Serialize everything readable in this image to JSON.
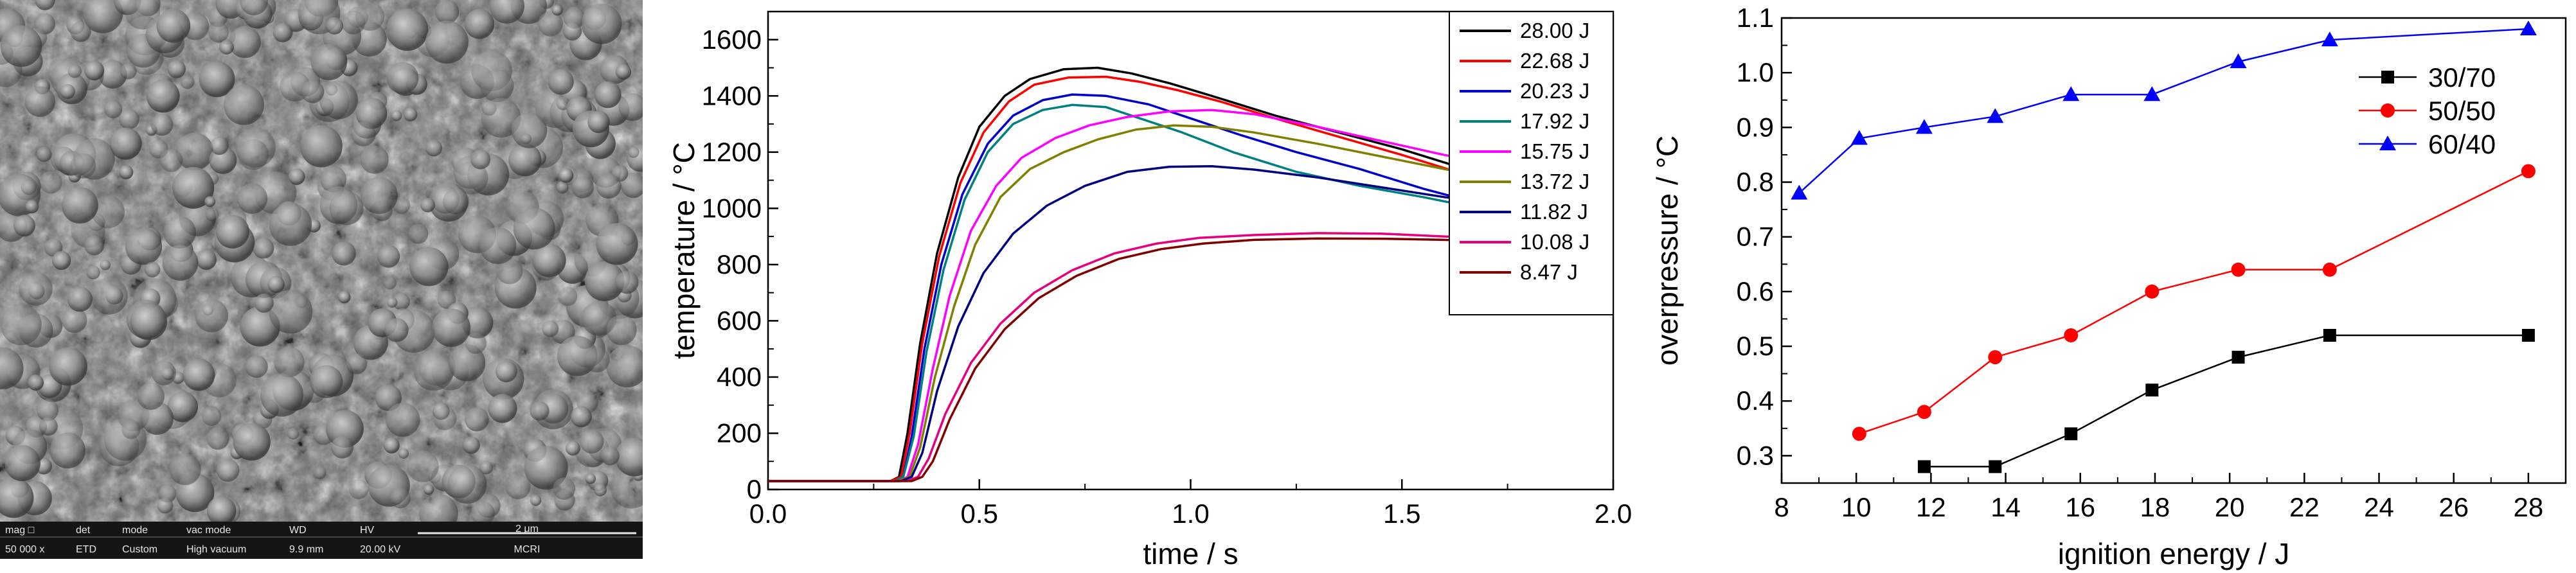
{
  "sem_image": {
    "info_bar": {
      "headers": [
        "mag □",
        "det",
        "mode",
        "vac mode",
        "WD",
        "HV"
      ],
      "values": [
        "50 000 x",
        "ETD",
        "Custom",
        "High vacuum",
        "9.9 mm",
        "20.00 kV"
      ],
      "scale": "2 μm",
      "lab": "MCRI"
    }
  },
  "chart_data": [
    {
      "type": "line",
      "xlabel": "time / s",
      "ylabel": "temperature / °C",
      "xlim": [
        0.0,
        2.0
      ],
      "ylim": [
        0,
        1700
      ],
      "xticks": [
        "0.0",
        "0.5",
        "1.0",
        "1.5",
        "2.0"
      ],
      "yticks": [
        "0",
        "200",
        "400",
        "600",
        "800",
        "1000",
        "1200",
        "1400",
        "1600"
      ],
      "grid": false,
      "legend_position": "top-right",
      "series": [
        {
          "name": "28.00 J",
          "color": "#000000",
          "points": [
            [
              0,
              30
            ],
            [
              0.29,
              30
            ],
            [
              0.31,
              45
            ],
            [
              0.33,
              200
            ],
            [
              0.36,
              520
            ],
            [
              0.4,
              840
            ],
            [
              0.45,
              1110
            ],
            [
              0.5,
              1290
            ],
            [
              0.56,
              1400
            ],
            [
              0.62,
              1460
            ],
            [
              0.7,
              1495
            ],
            [
              0.78,
              1500
            ],
            [
              0.86,
              1480
            ],
            [
              0.95,
              1445
            ],
            [
              1.05,
              1400
            ],
            [
              1.2,
              1330
            ],
            [
              1.35,
              1270
            ],
            [
              1.5,
              1210
            ],
            [
              1.65,
              1140
            ],
            [
              1.75,
              1090
            ]
          ]
        },
        {
          "name": "22.68 J",
          "color": "#ff0000",
          "points": [
            [
              0,
              30
            ],
            [
              0.29,
              30
            ],
            [
              0.315,
              45
            ],
            [
              0.335,
              200
            ],
            [
              0.365,
              520
            ],
            [
              0.405,
              830
            ],
            [
              0.455,
              1090
            ],
            [
              0.51,
              1270
            ],
            [
              0.57,
              1380
            ],
            [
              0.63,
              1440
            ],
            [
              0.71,
              1465
            ],
            [
              0.8,
              1468
            ],
            [
              0.88,
              1450
            ],
            [
              0.97,
              1420
            ],
            [
              1.07,
              1380
            ],
            [
              1.2,
              1320
            ],
            [
              1.35,
              1255
            ],
            [
              1.5,
              1190
            ],
            [
              1.65,
              1120
            ],
            [
              1.75,
              1075
            ]
          ]
        },
        {
          "name": "20.23 J",
          "color": "#0000cc",
          "points": [
            [
              0,
              30
            ],
            [
              0.3,
              30
            ],
            [
              0.32,
              45
            ],
            [
              0.34,
              190
            ],
            [
              0.37,
              500
            ],
            [
              0.41,
              800
            ],
            [
              0.46,
              1050
            ],
            [
              0.52,
              1230
            ],
            [
              0.58,
              1330
            ],
            [
              0.65,
              1385
            ],
            [
              0.72,
              1405
            ],
            [
              0.8,
              1400
            ],
            [
              0.9,
              1370
            ],
            [
              1.0,
              1320
            ],
            [
              1.12,
              1260
            ],
            [
              1.25,
              1200
            ],
            [
              1.4,
              1140
            ],
            [
              1.55,
              1070
            ],
            [
              1.65,
              1030
            ],
            [
              1.75,
              990
            ]
          ]
        },
        {
          "name": "17.92 J",
          "color": "#008080",
          "points": [
            [
              0,
              30
            ],
            [
              0.3,
              30
            ],
            [
              0.32,
              45
            ],
            [
              0.345,
              190
            ],
            [
              0.375,
              490
            ],
            [
              0.415,
              780
            ],
            [
              0.465,
              1030
            ],
            [
              0.52,
              1200
            ],
            [
              0.58,
              1300
            ],
            [
              0.65,
              1350
            ],
            [
              0.72,
              1368
            ],
            [
              0.8,
              1360
            ],
            [
              0.88,
              1320
            ],
            [
              0.98,
              1270
            ],
            [
              1.1,
              1200
            ],
            [
              1.25,
              1130
            ],
            [
              1.4,
              1080
            ],
            [
              1.55,
              1040
            ],
            [
              1.65,
              1010
            ],
            [
              1.75,
              980
            ]
          ]
        },
        {
          "name": "15.75 J",
          "color": "#ff00ff",
          "points": [
            [
              0,
              30
            ],
            [
              0.31,
              30
            ],
            [
              0.33,
              45
            ],
            [
              0.355,
              160
            ],
            [
              0.39,
              430
            ],
            [
              0.43,
              690
            ],
            [
              0.48,
              920
            ],
            [
              0.54,
              1080
            ],
            [
              0.6,
              1180
            ],
            [
              0.68,
              1250
            ],
            [
              0.76,
              1295
            ],
            [
              0.85,
              1325
            ],
            [
              0.95,
              1345
            ],
            [
              1.05,
              1350
            ],
            [
              1.15,
              1335
            ],
            [
              1.3,
              1290
            ],
            [
              1.45,
              1240
            ],
            [
              1.6,
              1190
            ],
            [
              1.75,
              1150
            ]
          ]
        },
        {
          "name": "13.72 J",
          "color": "#808000",
          "points": [
            [
              0,
              30
            ],
            [
              0.31,
              30
            ],
            [
              0.335,
              45
            ],
            [
              0.36,
              150
            ],
            [
              0.395,
              400
            ],
            [
              0.44,
              650
            ],
            [
              0.49,
              870
            ],
            [
              0.55,
              1040
            ],
            [
              0.62,
              1140
            ],
            [
              0.7,
              1200
            ],
            [
              0.78,
              1245
            ],
            [
              0.87,
              1280
            ],
            [
              0.96,
              1295
            ],
            [
              1.05,
              1290
            ],
            [
              1.15,
              1270
            ],
            [
              1.3,
              1230
            ],
            [
              1.45,
              1185
            ],
            [
              1.6,
              1140
            ],
            [
              1.75,
              1100
            ]
          ]
        },
        {
          "name": "11.82 J",
          "color": "#000080",
          "points": [
            [
              0,
              30
            ],
            [
              0.315,
              30
            ],
            [
              0.34,
              45
            ],
            [
              0.365,
              130
            ],
            [
              0.4,
              350
            ],
            [
              0.45,
              580
            ],
            [
              0.51,
              770
            ],
            [
              0.58,
              910
            ],
            [
              0.66,
              1010
            ],
            [
              0.75,
              1080
            ],
            [
              0.85,
              1130
            ],
            [
              0.95,
              1148
            ],
            [
              1.05,
              1150
            ],
            [
              1.15,
              1138
            ],
            [
              1.3,
              1110
            ],
            [
              1.45,
              1075
            ],
            [
              1.6,
              1040
            ],
            [
              1.75,
              1010
            ]
          ]
        },
        {
          "name": "10.08 J",
          "color": "#e6007e",
          "points": [
            [
              0,
              30
            ],
            [
              0.33,
              30
            ],
            [
              0.355,
              45
            ],
            [
              0.38,
              110
            ],
            [
              0.42,
              270
            ],
            [
              0.48,
              450
            ],
            [
              0.55,
              590
            ],
            [
              0.63,
              700
            ],
            [
              0.72,
              780
            ],
            [
              0.82,
              840
            ],
            [
              0.92,
              875
            ],
            [
              1.02,
              895
            ],
            [
              1.15,
              905
            ],
            [
              1.3,
              912
            ],
            [
              1.45,
              910
            ],
            [
              1.6,
              900
            ],
            [
              1.75,
              895
            ]
          ]
        },
        {
          "name": "8.47 J",
          "color": "#800000",
          "points": [
            [
              0,
              30
            ],
            [
              0.34,
              30
            ],
            [
              0.365,
              45
            ],
            [
              0.39,
              100
            ],
            [
              0.43,
              250
            ],
            [
              0.49,
              430
            ],
            [
              0.56,
              570
            ],
            [
              0.64,
              680
            ],
            [
              0.73,
              760
            ],
            [
              0.83,
              820
            ],
            [
              0.93,
              855
            ],
            [
              1.03,
              875
            ],
            [
              1.15,
              888
            ],
            [
              1.3,
              893
            ],
            [
              1.45,
              892
            ],
            [
              1.6,
              888
            ],
            [
              1.75,
              880
            ]
          ]
        }
      ]
    },
    {
      "type": "line",
      "xlabel": "ignition energy / J",
      "ylabel": "overpressure / °C",
      "xlim": [
        8,
        29
      ],
      "ylim": [
        0.25,
        1.1
      ],
      "xticks": [
        "8",
        "10",
        "12",
        "14",
        "16",
        "18",
        "20",
        "22",
        "24",
        "26",
        "28"
      ],
      "yticks": [
        "0.3",
        "0.4",
        "0.5",
        "0.6",
        "0.7",
        "0.8",
        "0.9",
        "1.0",
        "1.1"
      ],
      "grid": false,
      "legend_position": "top-right",
      "series": [
        {
          "name": "30/70",
          "color": "#000000",
          "marker": "square",
          "x": [
            11.82,
            13.72,
            15.75,
            17.92,
            20.23,
            22.68,
            28.0
          ],
          "y": [
            0.28,
            0.28,
            0.34,
            0.42,
            0.48,
            0.52,
            0.52
          ]
        },
        {
          "name": "50/50",
          "color": "#ff0000",
          "marker": "circle",
          "x": [
            10.08,
            11.82,
            13.72,
            15.75,
            17.92,
            20.23,
            22.68,
            28.0
          ],
          "y": [
            0.34,
            0.38,
            0.48,
            0.52,
            0.6,
            0.64,
            0.64,
            0.82
          ]
        },
        {
          "name": "60/40",
          "color": "#0000ff",
          "marker": "triangle",
          "x": [
            8.47,
            10.08,
            11.82,
            13.72,
            15.75,
            17.92,
            20.23,
            22.68,
            28.0
          ],
          "y": [
            0.78,
            0.88,
            0.9,
            0.92,
            0.96,
            0.96,
            1.02,
            1.06,
            1.08
          ]
        }
      ]
    }
  ]
}
